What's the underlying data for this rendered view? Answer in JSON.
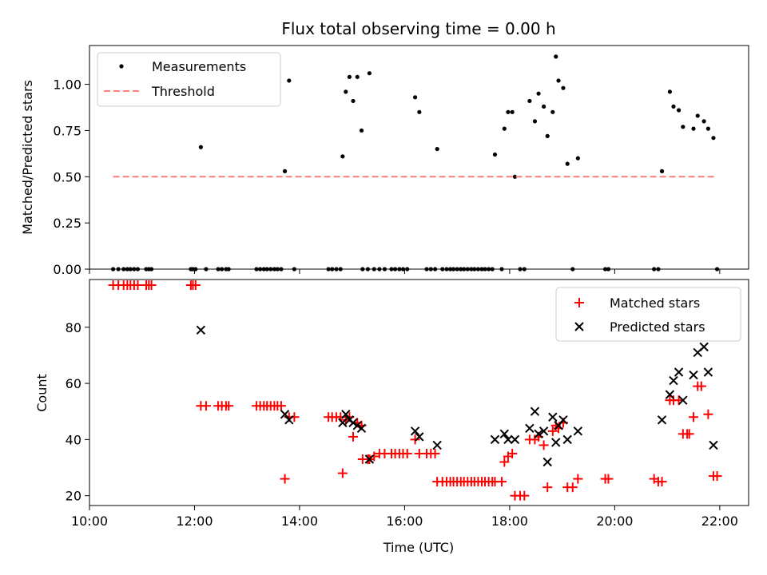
{
  "chart_data": [
    {
      "type": "scatter",
      "title": "Flux total observing time = 0.00 h",
      "xlabel": "",
      "ylabel": "Matched/Predicted stars",
      "ylim": [
        0,
        1.21
      ],
      "yticks": [
        0.0,
        0.25,
        0.5,
        0.75,
        1.0
      ],
      "ytick_labels": [
        "0.00",
        "0.25",
        "0.50",
        "0.75",
        "1.00"
      ],
      "xlim": [
        10.0,
        22.55
      ],
      "legend_position": "top-left",
      "legend": [
        "Measurements",
        "Threshold"
      ],
      "series": [
        {
          "name": "Measurements",
          "color": "#000000",
          "marker": "dot",
          "points": [
            [
              10.45,
              0
            ],
            [
              10.55,
              0
            ],
            [
              10.65,
              0
            ],
            [
              10.72,
              0
            ],
            [
              10.78,
              0
            ],
            [
              10.85,
              0
            ],
            [
              10.92,
              0
            ],
            [
              11.08,
              0
            ],
            [
              11.13,
              0
            ],
            [
              11.18,
              0
            ],
            [
              11.93,
              0
            ],
            [
              11.97,
              0
            ],
            [
              12.02,
              0
            ],
            [
              12.12,
              0.66
            ],
            [
              12.22,
              0
            ],
            [
              12.45,
              0
            ],
            [
              12.52,
              0
            ],
            [
              12.6,
              0
            ],
            [
              12.65,
              0
            ],
            [
              13.18,
              0
            ],
            [
              13.25,
              0
            ],
            [
              13.32,
              0
            ],
            [
              13.38,
              0
            ],
            [
              13.45,
              0
            ],
            [
              13.52,
              0
            ],
            [
              13.58,
              0
            ],
            [
              13.65,
              0
            ],
            [
              13.72,
              0.53
            ],
            [
              13.8,
              1.02
            ],
            [
              13.9,
              0
            ],
            [
              14.55,
              0
            ],
            [
              14.62,
              0
            ],
            [
              14.7,
              0
            ],
            [
              14.78,
              0
            ],
            [
              14.82,
              0.61
            ],
            [
              14.88,
              0.96
            ],
            [
              14.95,
              1.04
            ],
            [
              15.02,
              0.91
            ],
            [
              15.1,
              1.04
            ],
            [
              15.18,
              0.75
            ],
            [
              15.33,
              1.06
            ],
            [
              15.2,
              0
            ],
            [
              15.3,
              0
            ],
            [
              15.42,
              0
            ],
            [
              15.52,
              0
            ],
            [
              15.62,
              0
            ],
            [
              15.75,
              0
            ],
            [
              15.82,
              0
            ],
            [
              15.9,
              0
            ],
            [
              15.97,
              0
            ],
            [
              16.05,
              0
            ],
            [
              16.2,
              0.93
            ],
            [
              16.28,
              0.85
            ],
            [
              16.42,
              0
            ],
            [
              16.5,
              0
            ],
            [
              16.58,
              0
            ],
            [
              16.62,
              0.65
            ],
            [
              16.72,
              0
            ],
            [
              16.8,
              0
            ],
            [
              16.87,
              0
            ],
            [
              16.93,
              0
            ],
            [
              17.0,
              0
            ],
            [
              17.07,
              0
            ],
            [
              17.13,
              0
            ],
            [
              17.2,
              0
            ],
            [
              17.27,
              0
            ],
            [
              17.33,
              0
            ],
            [
              17.4,
              0
            ],
            [
              17.47,
              0
            ],
            [
              17.53,
              0
            ],
            [
              17.6,
              0
            ],
            [
              17.67,
              0
            ],
            [
              17.72,
              0.62
            ],
            [
              17.85,
              0
            ],
            [
              17.9,
              0.76
            ],
            [
              17.97,
              0.85
            ],
            [
              18.05,
              0.85
            ],
            [
              18.1,
              0.5
            ],
            [
              18.2,
              0
            ],
            [
              18.28,
              0
            ],
            [
              18.38,
              0.91
            ],
            [
              18.48,
              0.8
            ],
            [
              18.55,
              0.95
            ],
            [
              18.65,
              0.88
            ],
            [
              18.72,
              0.72
            ],
            [
              18.82,
              0.85
            ],
            [
              18.88,
              1.15
            ],
            [
              18.93,
              1.02
            ],
            [
              19.02,
              0.98
            ],
            [
              19.1,
              0.57
            ],
            [
              19.2,
              0
            ],
            [
              19.3,
              0.6
            ],
            [
              19.82,
              0
            ],
            [
              19.88,
              0
            ],
            [
              20.75,
              0
            ],
            [
              20.83,
              0
            ],
            [
              20.9,
              0.53
            ],
            [
              21.05,
              0.96
            ],
            [
              21.12,
              0.88
            ],
            [
              21.22,
              0.86
            ],
            [
              21.3,
              0.77
            ],
            [
              21.5,
              0.76
            ],
            [
              21.58,
              0.83
            ],
            [
              21.7,
              0.8
            ],
            [
              21.78,
              0.76
            ],
            [
              21.88,
              0.71
            ],
            [
              21.95,
              0
            ]
          ]
        },
        {
          "name": "Threshold",
          "color": "#ff7f7f",
          "style": "dashed",
          "points": [
            [
              10.45,
              0.5
            ],
            [
              21.95,
              0.5
            ]
          ]
        }
      ]
    },
    {
      "type": "scatter",
      "title": "",
      "xlabel": "Time (UTC)",
      "ylabel": "Count",
      "ylim": [
        16.5,
        97
      ],
      "yticks": [
        20,
        40,
        60,
        80
      ],
      "ytick_labels": [
        "20",
        "40",
        "60",
        "80"
      ],
      "xlim": [
        10.0,
        22.55
      ],
      "xticks": [
        10,
        12,
        14,
        16,
        18,
        20,
        22
      ],
      "xtick_labels": [
        "10:00",
        "12:00",
        "14:00",
        "16:00",
        "18:00",
        "20:00",
        "22:00"
      ],
      "legend_position": "top-right",
      "legend": [
        "Matched stars",
        "Predicted stars"
      ],
      "series": [
        {
          "name": "Matched stars",
          "color": "#ff0000",
          "marker": "plus",
          "points": [
            [
              10.45,
              95
            ],
            [
              10.55,
              95
            ],
            [
              10.65,
              95
            ],
            [
              10.72,
              95
            ],
            [
              10.78,
              95
            ],
            [
              10.85,
              95
            ],
            [
              10.92,
              95
            ],
            [
              11.08,
              95
            ],
            [
              11.13,
              95
            ],
            [
              11.18,
              95
            ],
            [
              11.93,
              95
            ],
            [
              11.97,
              95
            ],
            [
              12.02,
              95
            ],
            [
              12.12,
              52
            ],
            [
              12.22,
              52
            ],
            [
              12.45,
              52
            ],
            [
              12.52,
              52
            ],
            [
              12.6,
              52
            ],
            [
              12.65,
              52
            ],
            [
              13.18,
              52
            ],
            [
              13.25,
              52
            ],
            [
              13.32,
              52
            ],
            [
              13.38,
              52
            ],
            [
              13.45,
              52
            ],
            [
              13.52,
              52
            ],
            [
              13.58,
              52
            ],
            [
              13.65,
              52
            ],
            [
              13.72,
              26
            ],
            [
              13.8,
              48
            ],
            [
              13.9,
              48
            ],
            [
              14.55,
              48
            ],
            [
              14.62,
              48
            ],
            [
              14.7,
              48
            ],
            [
              14.78,
              48
            ],
            [
              14.82,
              28
            ],
            [
              14.88,
              47
            ],
            [
              14.95,
              48
            ],
            [
              15.02,
              41
            ],
            [
              15.1,
              46
            ],
            [
              15.18,
              45
            ],
            [
              15.2,
              33
            ],
            [
              15.3,
              33
            ],
            [
              15.33,
              33
            ],
            [
              15.42,
              34
            ],
            [
              15.52,
              35
            ],
            [
              15.62,
              35
            ],
            [
              15.75,
              35
            ],
            [
              15.82,
              35
            ],
            [
              15.9,
              35
            ],
            [
              15.97,
              35
            ],
            [
              16.05,
              35
            ],
            [
              16.2,
              40
            ],
            [
              16.28,
              35
            ],
            [
              16.42,
              35
            ],
            [
              16.5,
              35
            ],
            [
              16.58,
              35
            ],
            [
              16.62,
              25
            ],
            [
              16.72,
              25
            ],
            [
              16.8,
              25
            ],
            [
              16.87,
              25
            ],
            [
              16.93,
              25
            ],
            [
              17.0,
              25
            ],
            [
              17.07,
              25
            ],
            [
              17.13,
              25
            ],
            [
              17.2,
              25
            ],
            [
              17.27,
              25
            ],
            [
              17.33,
              25
            ],
            [
              17.4,
              25
            ],
            [
              17.47,
              25
            ],
            [
              17.53,
              25
            ],
            [
              17.6,
              25
            ],
            [
              17.67,
              25
            ],
            [
              17.72,
              25
            ],
            [
              17.85,
              25
            ],
            [
              17.9,
              32
            ],
            [
              17.97,
              34
            ],
            [
              18.05,
              35
            ],
            [
              18.1,
              20
            ],
            [
              18.2,
              20
            ],
            [
              18.28,
              20
            ],
            [
              18.38,
              40
            ],
            [
              18.48,
              40
            ],
            [
              18.55,
              41
            ],
            [
              18.65,
              38
            ],
            [
              18.72,
              23
            ],
            [
              18.82,
              43
            ],
            [
              18.88,
              45
            ],
            [
              18.93,
              44
            ],
            [
              19.02,
              46
            ],
            [
              19.1,
              23
            ],
            [
              19.2,
              23
            ],
            [
              19.3,
              26
            ],
            [
              19.82,
              26
            ],
            [
              19.88,
              26
            ],
            [
              20.75,
              26
            ],
            [
              20.83,
              25
            ],
            [
              20.9,
              25
            ],
            [
              21.05,
              54
            ],
            [
              21.12,
              54
            ],
            [
              21.22,
              54
            ],
            [
              21.3,
              42
            ],
            [
              21.38,
              42
            ],
            [
              21.42,
              42
            ],
            [
              21.5,
              48
            ],
            [
              21.58,
              59
            ],
            [
              21.65,
              59
            ],
            [
              21.78,
              49
            ],
            [
              21.88,
              27
            ],
            [
              21.95,
              27
            ]
          ]
        },
        {
          "name": "Predicted stars",
          "color": "#000000",
          "marker": "x",
          "points": [
            [
              12.12,
              79
            ],
            [
              13.72,
              49
            ],
            [
              13.8,
              47
            ],
            [
              14.82,
              46
            ],
            [
              14.88,
              49
            ],
            [
              14.95,
              47
            ],
            [
              15.02,
              46
            ],
            [
              15.1,
              45
            ],
            [
              15.18,
              44
            ],
            [
              15.33,
              33
            ],
            [
              16.2,
              43
            ],
            [
              16.28,
              41
            ],
            [
              16.62,
              38
            ],
            [
              17.72,
              40
            ],
            [
              17.9,
              42
            ],
            [
              17.97,
              40
            ],
            [
              18.1,
              40
            ],
            [
              18.38,
              44
            ],
            [
              18.48,
              50
            ],
            [
              18.55,
              42
            ],
            [
              18.65,
              43
            ],
            [
              18.72,
              32
            ],
            [
              18.82,
              48
            ],
            [
              18.88,
              39
            ],
            [
              18.93,
              45
            ],
            [
              19.02,
              47
            ],
            [
              19.1,
              40
            ],
            [
              19.3,
              43
            ],
            [
              20.9,
              47
            ],
            [
              21.05,
              56
            ],
            [
              21.12,
              61
            ],
            [
              21.22,
              64
            ],
            [
              21.3,
              54
            ],
            [
              21.5,
              63
            ],
            [
              21.58,
              71
            ],
            [
              21.7,
              73
            ],
            [
              21.78,
              64
            ],
            [
              21.88,
              38
            ]
          ]
        }
      ]
    }
  ]
}
